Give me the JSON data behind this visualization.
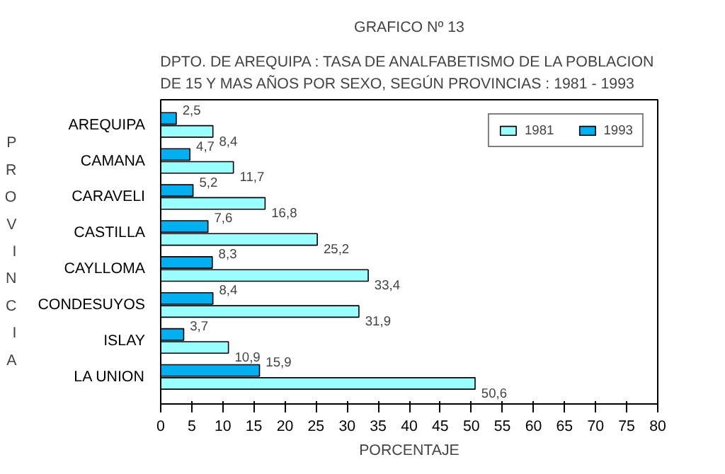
{
  "chart_data": {
    "type": "bar",
    "orientation": "horizontal",
    "title": "GRAFICO Nº 13",
    "subtitle": "DPTO. DE AREQUIPA : TASA DE ANALFABETISMO DE LA POBLACION\nDE 15 Y MAS AÑOS POR SEXO, SEGÚN PROVINCIAS : 1981 - 1993",
    "xlabel": "PORCENTAJE",
    "ylabel": "PROVINCIA",
    "categories": [
      "AREQUIPA",
      "CAMANA",
      "CARAVELI",
      "CASTILLA",
      "CAYLLOMA",
      "CONDESUYOS",
      "ISLAY",
      "LA UNION"
    ],
    "series": [
      {
        "name": "1981",
        "color": "#99ffff",
        "values": [
          8.4,
          11.7,
          16.8,
          25.2,
          33.4,
          31.9,
          10.9,
          50.6
        ],
        "value_labels": [
          "8,4",
          "11,7",
          "16,8",
          "25,2",
          "33,4",
          "31,9",
          "10,9",
          "50,6"
        ]
      },
      {
        "name": "1993",
        "color": "#00b0f0",
        "values": [
          2.5,
          4.7,
          5.2,
          7.6,
          8.3,
          8.4,
          3.7,
          15.9
        ],
        "value_labels": [
          "2,5",
          "4,7",
          "5,2",
          "7,6",
          "8,3",
          "8,4",
          "3,7",
          "15,9"
        ]
      }
    ],
    "xlim": [
      0,
      80
    ],
    "xticks": [
      0,
      5,
      10,
      15,
      20,
      25,
      30,
      35,
      40,
      45,
      50,
      55,
      60,
      65,
      70,
      75,
      80
    ],
    "grid": false,
    "legend": "top right"
  }
}
